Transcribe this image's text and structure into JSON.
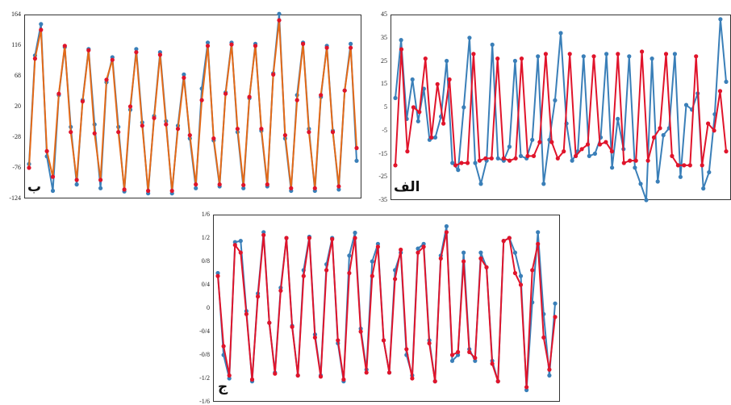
{
  "colors": {
    "series_blue": "#3a7fb8",
    "series_red": "#e0142b",
    "series_orange": "#e46a18"
  },
  "panels": {
    "b": {
      "label": "ب"
    },
    "alef": {
      "label": "الف"
    },
    "jim": {
      "label": "ج"
    }
  },
  "chart_data": [
    {
      "type": "line",
      "panel": "b",
      "y_ticks": [
        "164",
        "116",
        "68",
        "20",
        "-28",
        "-76",
        "-124"
      ],
      "ylim": [
        -124,
        164
      ],
      "grid": false,
      "series": [
        {
          "values": [
            -70,
            100,
            149,
            -58,
            -112,
            38,
            113,
            -12,
            -102,
            30,
            110,
            -8,
            -108,
            58,
            97,
            -12,
            -113,
            15,
            110,
            -5,
            -116,
            5,
            105,
            -3,
            -116,
            -10,
            70,
            -30,
            -108,
            48,
            120,
            -33,
            -105,
            42,
            120,
            -20,
            -108,
            33,
            118,
            -18,
            -105,
            72,
            165,
            -30,
            -112,
            38,
            120,
            -15,
            -112,
            35,
            115,
            -18,
            -110,
            45,
            118,
            -65
          ]
        },
        {
          "values": [
            -76,
            95,
            140,
            -50,
            -90,
            40,
            115,
            -20,
            -95,
            28,
            108,
            -22,
            -95,
            62,
            93,
            -20,
            -110,
            20,
            105,
            -10,
            -112,
            2,
            101,
            -8,
            -112,
            -15,
            65,
            -25,
            -102,
            30,
            115,
            -30,
            -102,
            40,
            117,
            -15,
            -103,
            35,
            115,
            -15,
            -102,
            70,
            155,
            -25,
            -108,
            30,
            118,
            -20,
            -108,
            38,
            112,
            -20,
            -105,
            45,
            112,
            -45
          ]
        }
      ]
    },
    {
      "type": "line",
      "panel": "alef",
      "y_ticks": [
        "45",
        "35",
        "25",
        "15",
        "5",
        "-5",
        "-15",
        "-25",
        "-35"
      ],
      "ylim": [
        -35,
        45
      ],
      "grid": false,
      "series": [
        {
          "values": [
            9,
            34,
            0,
            17,
            -1,
            13,
            -9,
            -8,
            1,
            25,
            -19,
            -22,
            5,
            35,
            -19,
            -28,
            -18,
            32,
            -17,
            -18,
            -12,
            25,
            -16,
            -17,
            -9,
            27,
            -28,
            -9,
            8,
            37,
            -2,
            -18,
            -14,
            27,
            -16,
            -15,
            -8,
            28,
            -21,
            0,
            -13,
            27,
            -21,
            -28,
            -35,
            26,
            -27,
            -7,
            -4,
            28,
            -25,
            6,
            4,
            11,
            -30,
            -23,
            2,
            43,
            16
          ]
        },
        {
          "values": [
            -20,
            30,
            -14,
            5,
            3,
            26,
            -8,
            15,
            -2,
            17,
            -20,
            -19,
            -19,
            28,
            -18,
            -17,
            -17,
            26,
            -17,
            -18,
            -17,
            26,
            -16,
            -16,
            -10,
            28,
            -10,
            -17,
            -14,
            28,
            -16,
            -13,
            -11,
            27,
            -11,
            -10,
            -14,
            28,
            -19,
            -18,
            -18,
            29,
            -18,
            -8,
            -4,
            28,
            -16,
            -20,
            -20,
            -20,
            27,
            -20,
            -2,
            -5,
            12,
            -14
          ]
        }
      ]
    },
    {
      "type": "line",
      "panel": "jim",
      "y_ticks": [
        "1/6",
        "1/2",
        "0/8",
        "0/4",
        "0",
        "-0/4",
        "-0/8",
        "-1/2",
        "-1/6"
      ],
      "ylim": [
        -1.6,
        1.6
      ],
      "grid": false,
      "series": [
        {
          "values": [
            0.6,
            -0.8,
            -1.2,
            1.13,
            1.15,
            -0.05,
            -1.25,
            0.25,
            1.3,
            -0.25,
            -1.1,
            0.35,
            1.2,
            -0.3,
            -1.15,
            0.65,
            1.22,
            -0.45,
            -1.15,
            0.75,
            1.2,
            -0.6,
            -1.25,
            0.9,
            1.29,
            -0.35,
            -1.05,
            0.8,
            1.1,
            -0.55,
            -1.1,
            0.65,
            0.95,
            -0.8,
            -1.15,
            1.02,
            1.1,
            -0.55,
            -1.25,
            0.9,
            1.4,
            -0.9,
            -0.8,
            0.95,
            -0.7,
            -0.9,
            0.95,
            0.7,
            -0.9,
            -1.25,
            1.15,
            1.2,
            0.95,
            0.55,
            -1.4,
            0.1,
            1.3,
            -0.1,
            -1.15,
            0.08
          ]
        },
        {
          "values": [
            0.55,
            -0.65,
            -1.15,
            1.08,
            0.95,
            -0.1,
            -1.22,
            0.2,
            1.25,
            -0.25,
            -1.12,
            0.3,
            1.2,
            -0.32,
            -1.15,
            0.55,
            1.2,
            -0.5,
            -1.17,
            0.65,
            1.18,
            -0.55,
            -1.22,
            0.6,
            1.2,
            -0.4,
            -1.1,
            0.55,
            1.05,
            -0.55,
            -1.1,
            0.5,
            1.0,
            -0.7,
            -1.2,
            0.95,
            1.05,
            -0.6,
            -1.25,
            0.85,
            1.3,
            -0.8,
            -0.75,
            0.8,
            -0.75,
            -0.85,
            0.85,
            0.7,
            -0.95,
            -1.25,
            1.15,
            1.2,
            0.6,
            0.4,
            -1.35,
            0.65,
            1.1,
            -0.5,
            -1.05,
            -0.15
          ]
        }
      ]
    }
  ]
}
